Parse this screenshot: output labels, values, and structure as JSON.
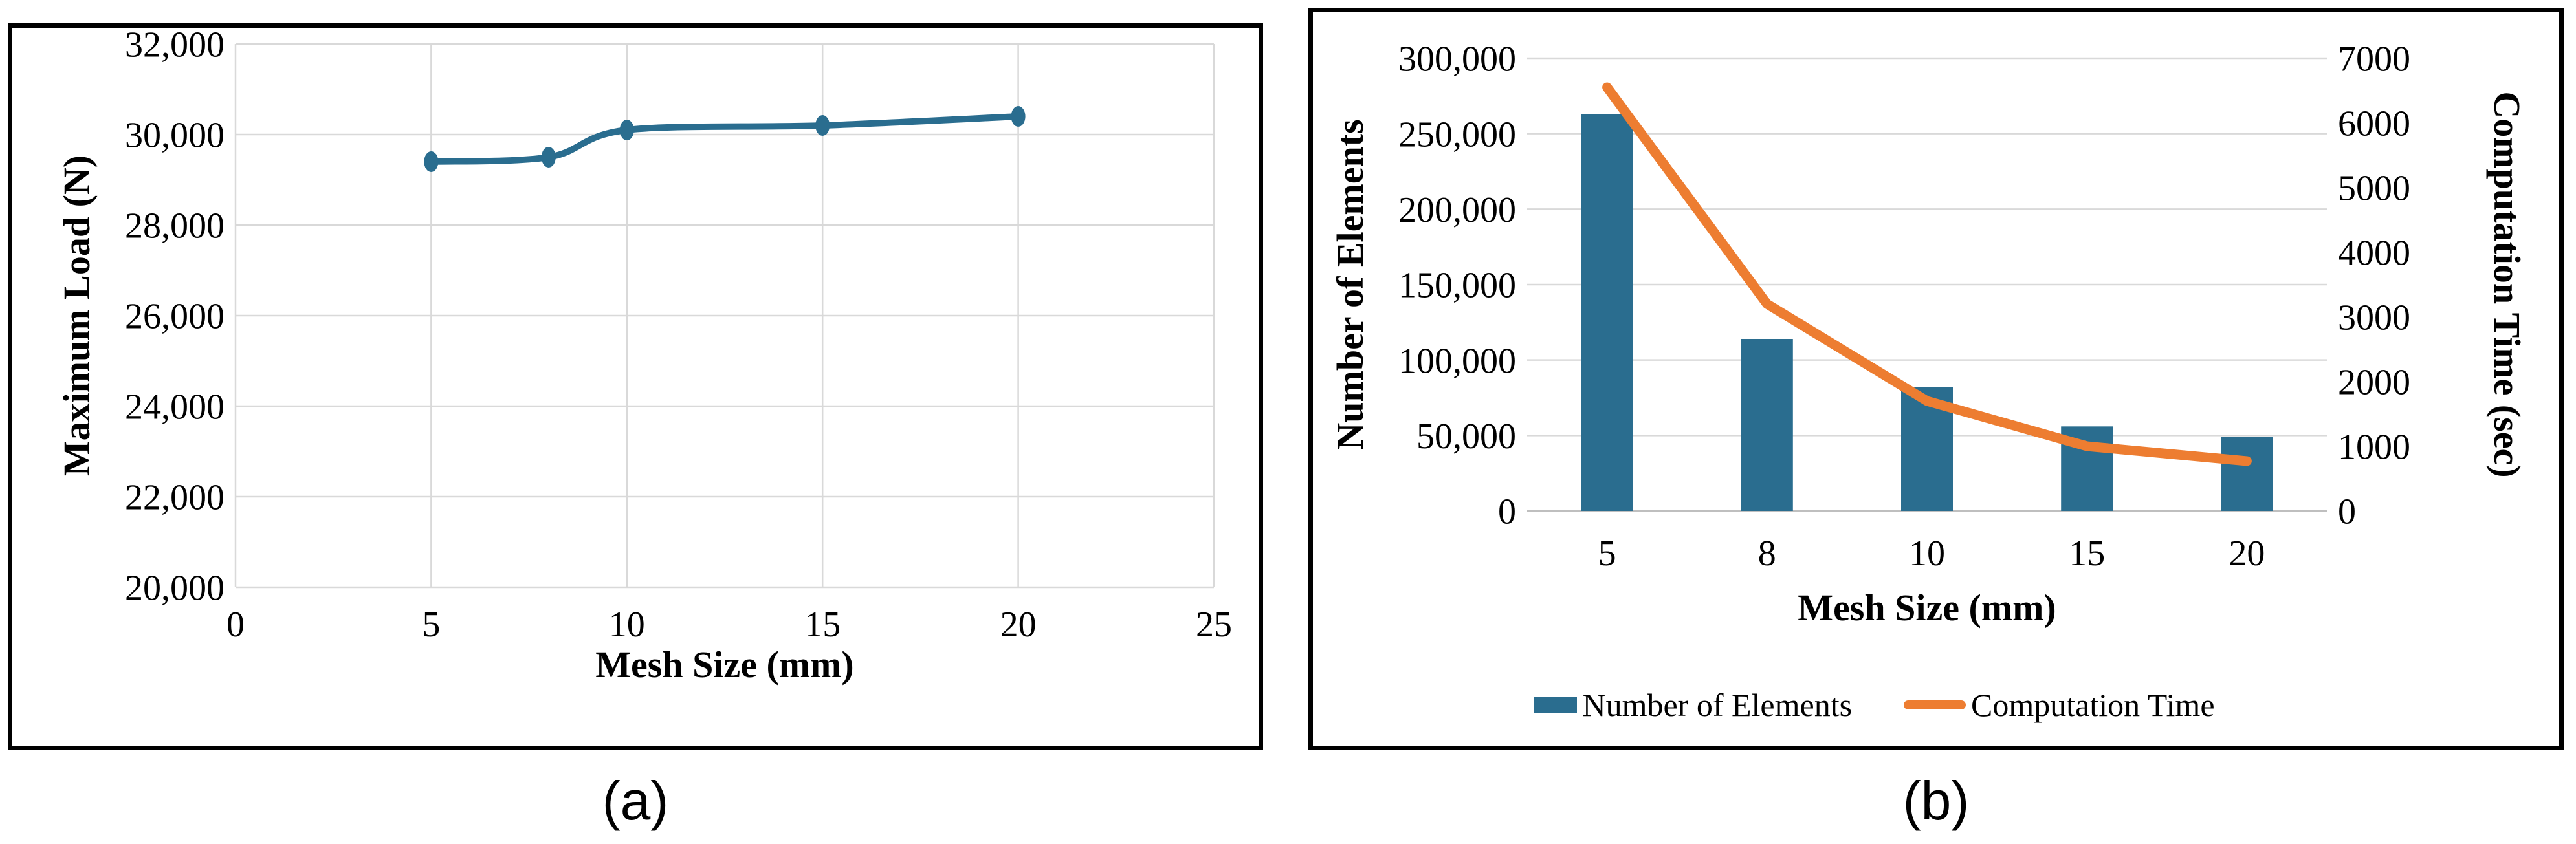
{
  "captions": {
    "a": "(a)",
    "b": "(b)"
  },
  "colors": {
    "series_blue": "#2A6D8F",
    "series_orange": "#ED7D31",
    "gridline": "#D9D9D9",
    "axis_line": "#BFBFBF",
    "text": "#000000",
    "panel_border": "#000000"
  },
  "chart_data": [
    {
      "id": "a",
      "type": "line",
      "xlabel": "Mesh Size (mm)",
      "ylabel": "Maximum Load (N)",
      "x": [
        5,
        8,
        10,
        15,
        20
      ],
      "values": [
        29400,
        29500,
        30100,
        30200,
        30400
      ],
      "xlim": [
        0,
        25
      ],
      "xticks": [
        0,
        5,
        10,
        15,
        20,
        25
      ],
      "ylim": [
        20000,
        32000
      ],
      "ytick_step": 2000,
      "grid": "both",
      "marker": "ellipse",
      "smooth": true,
      "legend_position": "none"
    },
    {
      "id": "b",
      "type": "bar+line",
      "xlabel": "Mesh Size (mm)",
      "ylabel_left": "Number of Elements",
      "ylabel_right": "Computation Time (sec)",
      "categories": [
        "5",
        "8",
        "10",
        "15",
        "20"
      ],
      "series": [
        {
          "name": "Number of Elements",
          "kind": "bar",
          "axis": "left",
          "values": [
            263000,
            114000,
            82000,
            56000,
            49000
          ]
        },
        {
          "name": "Computation Time",
          "kind": "line",
          "axis": "right",
          "values": [
            6550,
            3200,
            1700,
            1000,
            770
          ]
        }
      ],
      "ylim_left": [
        0,
        300000
      ],
      "ytick_step_left": 50000,
      "ylim_right": [
        0,
        7000
      ],
      "ytick_step_right": 1000,
      "grid": "horizontal",
      "legend": [
        "Number of Elements",
        "Computation Time"
      ],
      "legend_position": "bottom"
    }
  ]
}
